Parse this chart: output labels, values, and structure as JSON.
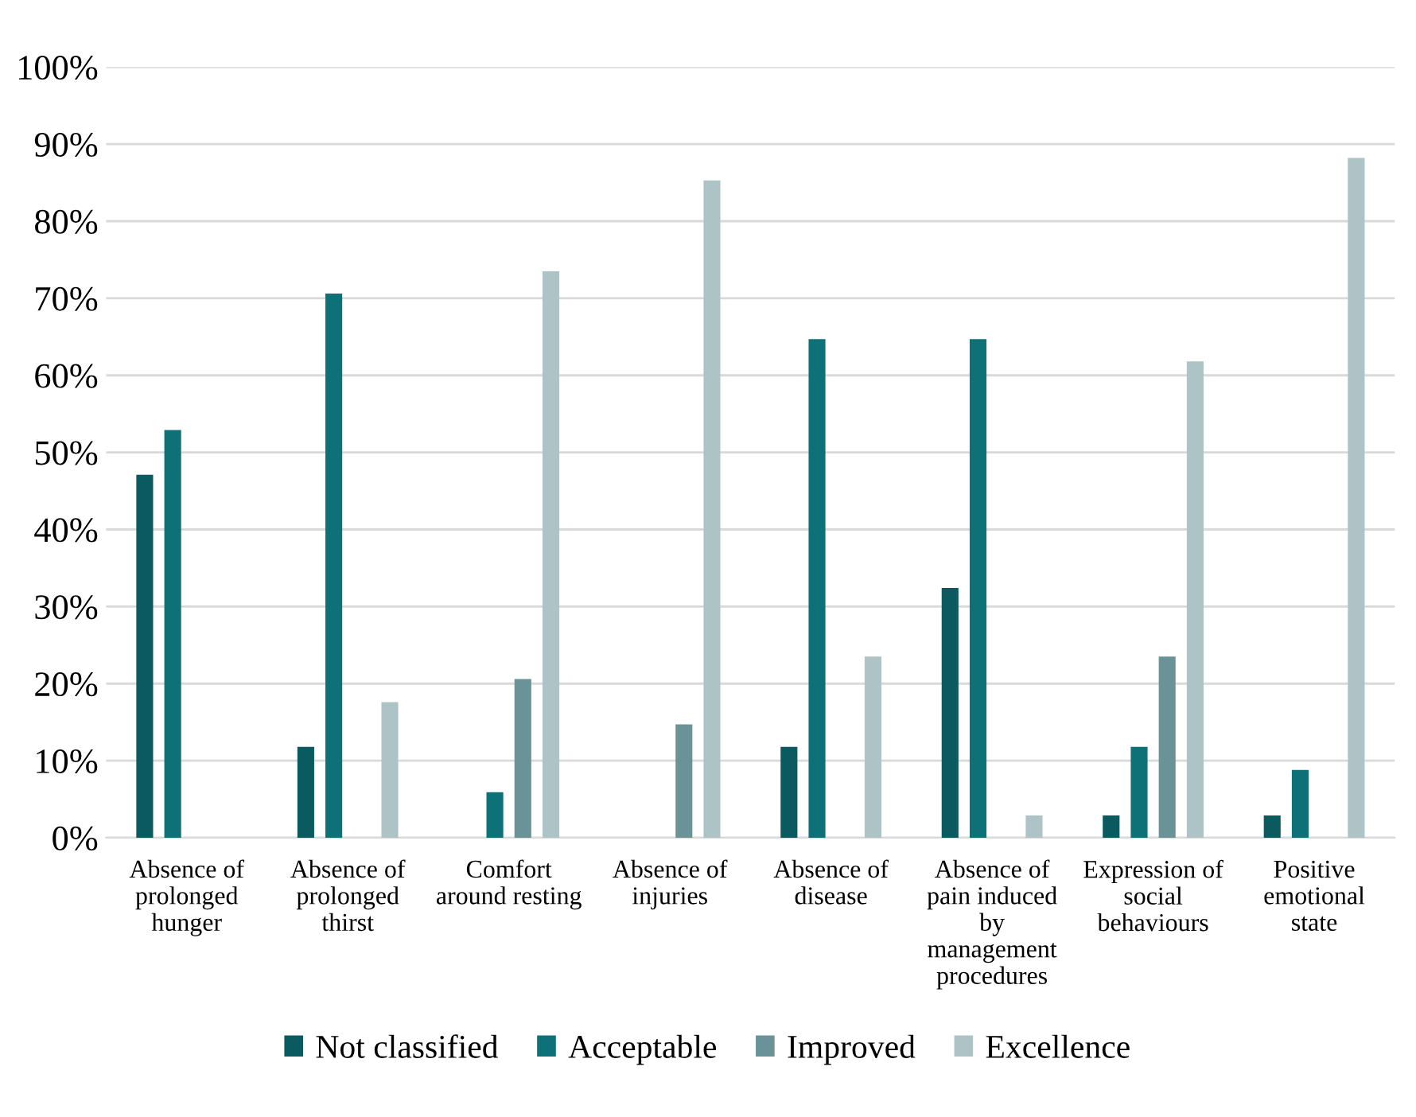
{
  "chart_data": {
    "type": "bar",
    "categories": [
      "Absence of prolonged hunger",
      "Absence of prolonged thirst",
      "Comfort around resting",
      "Absence of injuries",
      "Absence of disease",
      "Absence of pain induced by management procedures",
      "Expression of social behaviours",
      "Positive emotional state"
    ],
    "series": [
      {
        "name": "Not classified",
        "color": "#0b5a60",
        "values": [
          47.1,
          11.8,
          0,
          0,
          11.8,
          32.4,
          2.9,
          2.9
        ]
      },
      {
        "name": "Acceptable",
        "color": "#0e7178",
        "values": [
          52.9,
          70.6,
          5.9,
          0,
          64.7,
          64.7,
          11.8,
          8.8
        ]
      },
      {
        "name": "Improved",
        "color": "#6a9398",
        "values": [
          0,
          0,
          20.6,
          14.7,
          0,
          0,
          23.5,
          0
        ]
      },
      {
        "name": "Excellence",
        "color": "#aec3c5",
        "values": [
          0,
          17.6,
          73.5,
          85.3,
          23.5,
          2.9,
          61.8,
          88.2
        ]
      }
    ],
    "ylim": [
      0,
      100
    ],
    "yticks": [
      {
        "value": 0,
        "label": "0%"
      },
      {
        "value": 10,
        "label": "10%"
      },
      {
        "value": 20,
        "label": "20%"
      },
      {
        "value": 30,
        "label": "30%"
      },
      {
        "value": 40,
        "label": "40%"
      },
      {
        "value": 50,
        "label": "50%"
      },
      {
        "value": 60,
        "label": "60%"
      },
      {
        "value": 70,
        "label": "70%"
      },
      {
        "value": 80,
        "label": "80%"
      },
      {
        "value": 90,
        "label": "90%"
      },
      {
        "value": 100,
        "label": "100%"
      }
    ],
    "grid": "y",
    "legend": "bottom"
  }
}
